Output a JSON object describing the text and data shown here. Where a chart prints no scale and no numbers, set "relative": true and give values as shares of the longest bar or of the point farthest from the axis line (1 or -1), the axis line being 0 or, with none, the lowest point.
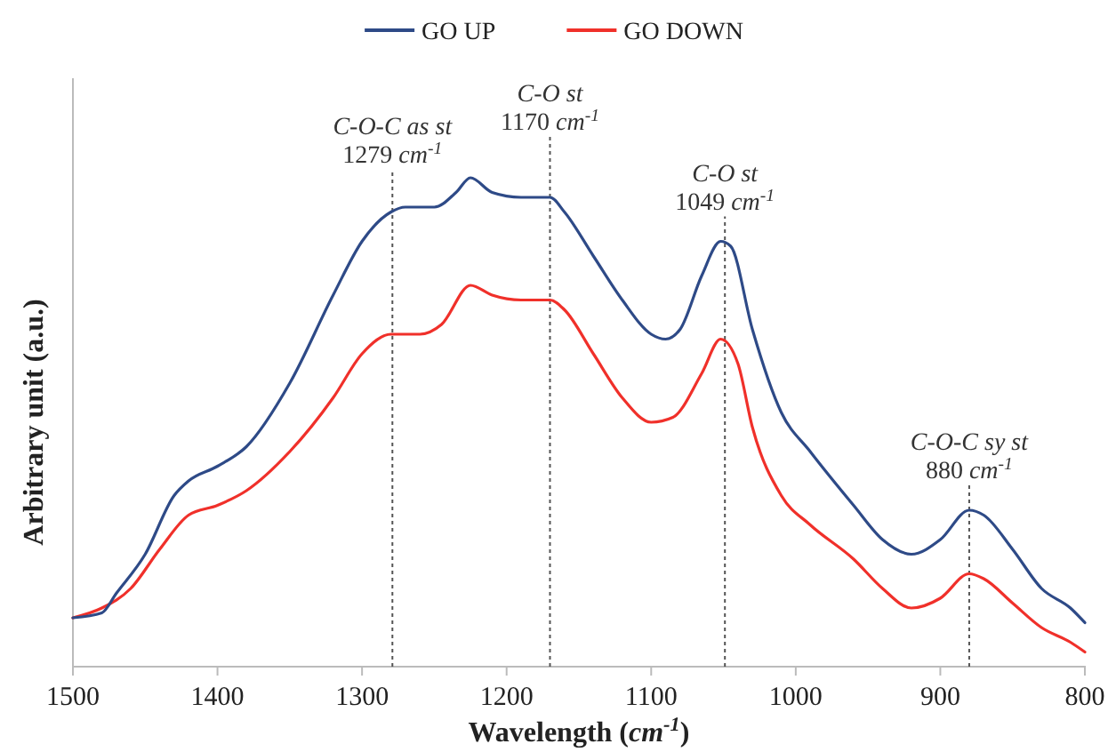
{
  "chart_data": {
    "type": "line",
    "relative": true,
    "ylabel": "Arbitrary unit (a.u.)",
    "xlabel": "Wavelength (cm$^{-1}$)",
    "xlim": [
      1500,
      800
    ],
    "xticks": [
      1500,
      1400,
      1300,
      1200,
      1100,
      1000,
      900,
      800
    ],
    "legend": "top",
    "grid": false,
    "line_style": "solid",
    "marker": "none",
    "x": [
      1500,
      1480,
      1470,
      1450,
      1430,
      1420,
      1400,
      1380,
      1350,
      1320,
      1300,
      1280,
      1270,
      1250,
      1235,
      1225,
      1210,
      1190,
      1170,
      1160,
      1140,
      1120,
      1100,
      1090,
      1080,
      1065,
      1052,
      1045,
      1030,
      1010,
      990,
      960,
      940,
      920,
      900,
      880,
      870,
      850,
      830,
      810,
      800
    ],
    "series": [
      {
        "name": "GO UP",
        "color": "#2e4a87",
        "values": [
          0.1,
          0.11,
          0.15,
          0.23,
          0.35,
          0.38,
          0.41,
          0.45,
          0.58,
          0.76,
          0.87,
          0.93,
          0.94,
          0.94,
          0.97,
          1.0,
          0.97,
          0.96,
          0.96,
          0.93,
          0.84,
          0.75,
          0.68,
          0.67,
          0.69,
          0.8,
          0.87,
          0.86,
          0.69,
          0.52,
          0.44,
          0.33,
          0.26,
          0.23,
          0.26,
          0.32,
          0.31,
          0.24,
          0.16,
          0.12,
          0.09
        ]
      },
      {
        "name": "GO DOWN",
        "color": "#f0302a",
        "x": [
          1500,
          1480,
          1460,
          1440,
          1420,
          1400,
          1380,
          1350,
          1320,
          1300,
          1280,
          1260,
          1245,
          1225,
          1210,
          1190,
          1170,
          1160,
          1140,
          1120,
          1100,
          1085,
          1065,
          1052,
          1040,
          1030,
          1010,
          990,
          960,
          940,
          920,
          900,
          880,
          870,
          850,
          830,
          810,
          800
        ],
        "values": [
          0.1,
          0.12,
          0.16,
          0.24,
          0.31,
          0.33,
          0.36,
          0.44,
          0.55,
          0.64,
          0.68,
          0.68,
          0.7,
          0.78,
          0.76,
          0.75,
          0.75,
          0.73,
          0.64,
          0.55,
          0.5,
          0.51,
          0.6,
          0.67,
          0.62,
          0.49,
          0.35,
          0.29,
          0.22,
          0.16,
          0.12,
          0.14,
          0.19,
          0.18,
          0.13,
          0.08,
          0.05,
          0.03
        ]
      }
    ],
    "ref_lines": [
      {
        "axis": "x",
        "value": 1279,
        "label": "C-O-C as st\n1279 cm$^{-1}$",
        "line_style": "dotted"
      },
      {
        "axis": "x",
        "value": 1170,
        "label": "C-O st\n1170 cm$^{-1}$",
        "line_style": "dotted"
      },
      {
        "axis": "x",
        "value": 1049,
        "label": "C-O st\n1049 cm$^{-1}$",
        "line_style": "dotted"
      },
      {
        "axis": "x",
        "value": 880,
        "label": "C-O-C sy st\n880 cm$^{-1}$",
        "line_style": "dotted"
      }
    ]
  }
}
